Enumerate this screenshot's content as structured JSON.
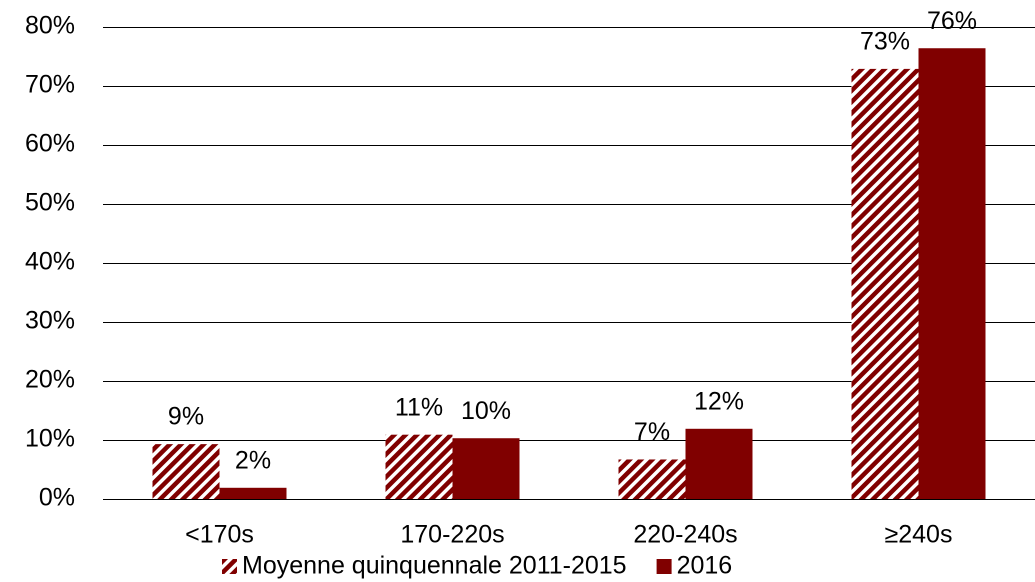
{
  "chart_data": {
    "type": "bar",
    "categories": [
      "<170s",
      "170-220s",
      "220-240s",
      "≥240s"
    ],
    "series": [
      {
        "name": "Moyenne quinquennale 2011-2015",
        "color": "#800000",
        "hatch": true,
        "values": [
          9.3,
          10.9,
          6.7,
          72.9
        ],
        "value_labels": [
          "9%",
          "11%",
          "7%",
          "73%"
        ]
      },
      {
        "name": "2016",
        "color": "#800000",
        "hatch": false,
        "values": [
          1.9,
          10.3,
          11.9,
          76.4
        ],
        "value_labels": [
          "2%",
          "10%",
          "12%",
          "76%"
        ]
      }
    ],
    "ylim": [
      0,
      80
    ],
    "yticks": [
      {
        "value": 0,
        "label": "0%"
      },
      {
        "value": 10,
        "label": "10%"
      },
      {
        "value": 20,
        "label": "20%"
      },
      {
        "value": 30,
        "label": "30%"
      },
      {
        "value": 40,
        "label": "40%"
      },
      {
        "value": 50,
        "label": "50%"
      },
      {
        "value": 60,
        "label": "60%"
      },
      {
        "value": 70,
        "label": "70%"
      },
      {
        "value": 80,
        "label": "80%"
      }
    ],
    "grid": true,
    "legend": "bottom"
  }
}
